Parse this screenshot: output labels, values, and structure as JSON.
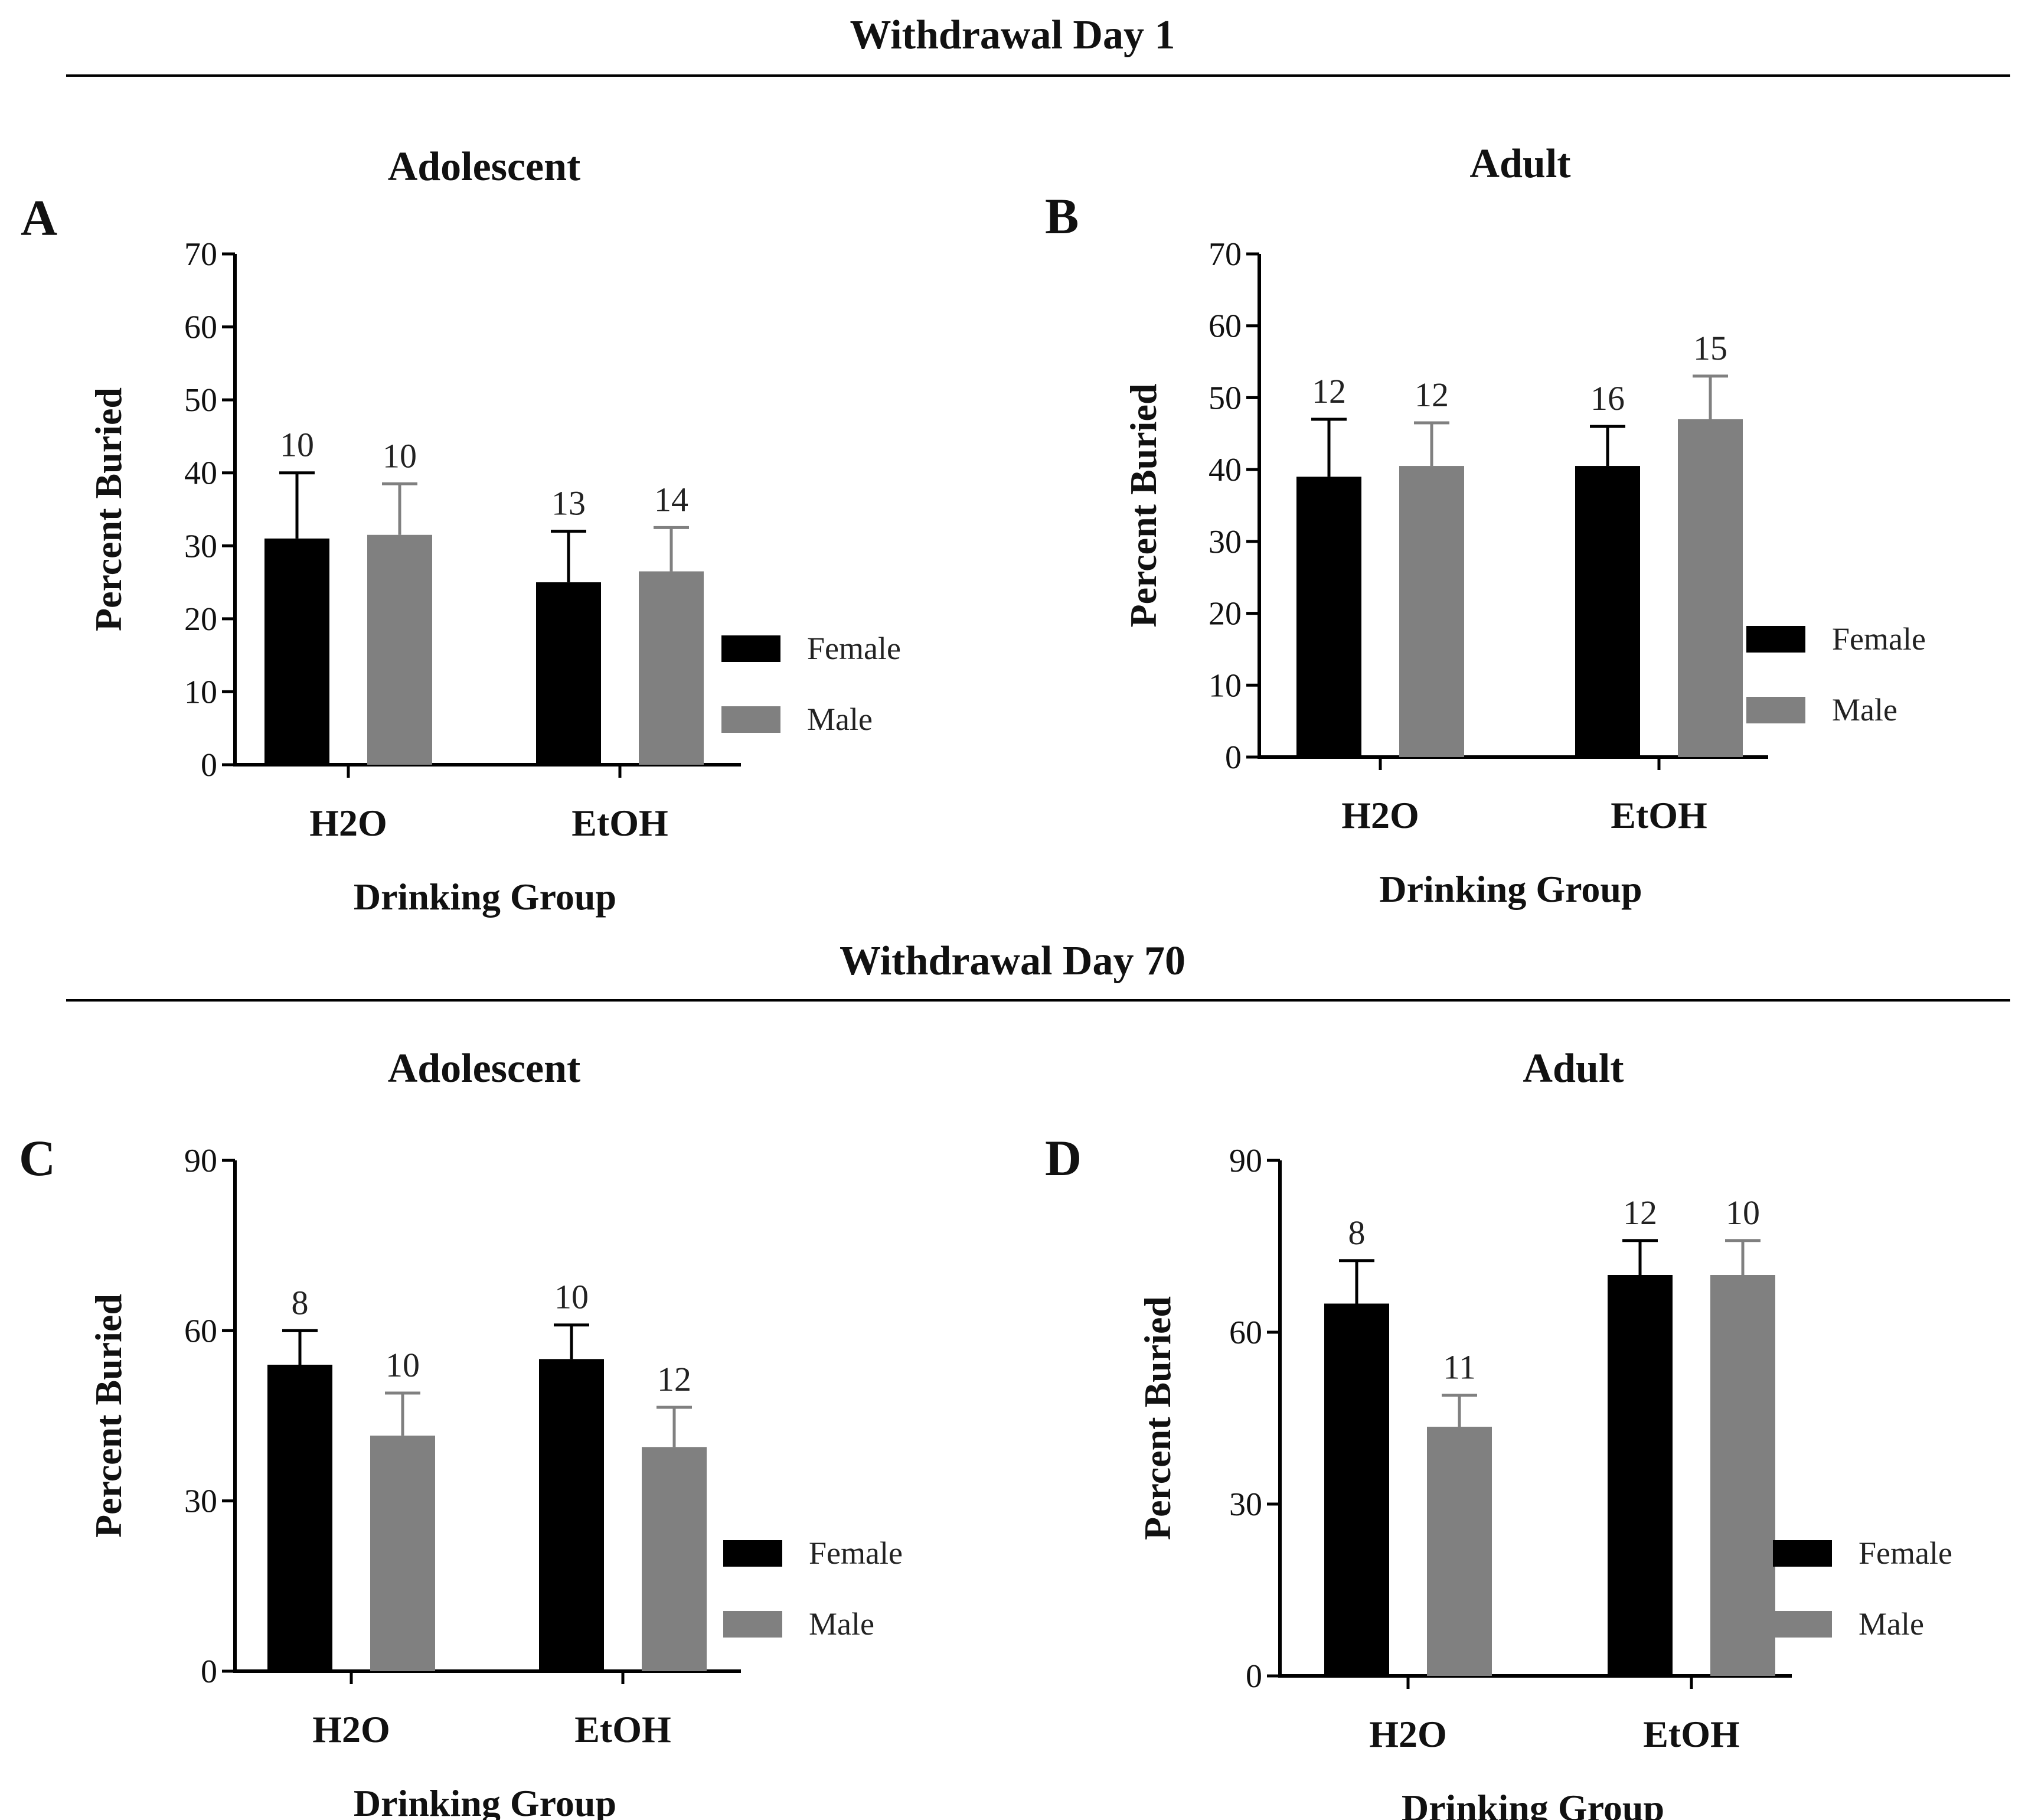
{
  "colors": {
    "female": "#000000",
    "male": "#808080",
    "axis": "#000000"
  },
  "sections": [
    {
      "title": "Withdrawal Day 1"
    },
    {
      "title": "Withdrawal Day 70"
    }
  ],
  "legend": {
    "female": "Female",
    "male": "Male"
  },
  "chart_data": [
    {
      "panel": "A",
      "type": "bar",
      "title": "Adolescent",
      "xlabel": "Drinking Group",
      "ylabel": "Percent Buried",
      "ylim": [
        0,
        70
      ],
      "yticks": [
        0,
        10,
        20,
        30,
        40,
        50,
        60,
        70
      ],
      "categories": [
        "H2O",
        "EtOH"
      ],
      "series": [
        {
          "name": "Female",
          "values": [
            31,
            25
          ],
          "errors": [
            9,
            7
          ],
          "n": [
            "10",
            "13"
          ]
        },
        {
          "name": "Male",
          "values": [
            31.5,
            26.5
          ],
          "errors": [
            7,
            6
          ],
          "n": [
            "10",
            "14"
          ]
        }
      ]
    },
    {
      "panel": "B",
      "type": "bar",
      "title": "Adult",
      "xlabel": "Drinking Group",
      "ylabel": "Percent Buried",
      "ylim": [
        0,
        70
      ],
      "yticks": [
        0,
        10,
        20,
        30,
        40,
        50,
        60,
        70
      ],
      "categories": [
        "H2O",
        "EtOH"
      ],
      "series": [
        {
          "name": "Female",
          "values": [
            39,
            40.5
          ],
          "errors": [
            8,
            5.5
          ],
          "n": [
            "12",
            "16"
          ]
        },
        {
          "name": "Male",
          "values": [
            40.5,
            47
          ],
          "errors": [
            6,
            6
          ],
          "n": [
            "12",
            "15"
          ]
        }
      ]
    },
    {
      "panel": "C",
      "type": "bar",
      "title": "Adolescent",
      "xlabel": "Drinking Group",
      "ylabel": "Percent Buried",
      "ylim": [
        0,
        90
      ],
      "yticks": [
        0,
        30,
        60,
        90
      ],
      "categories": [
        "H2O",
        "EtOH"
      ],
      "series": [
        {
          "name": "Female",
          "values": [
            54,
            55
          ],
          "errors": [
            6,
            6
          ],
          "n": [
            "8",
            "10"
          ]
        },
        {
          "name": "Male",
          "values": [
            41.5,
            39.5
          ],
          "errors": [
            7.5,
            7
          ],
          "n": [
            "10",
            "12"
          ]
        }
      ]
    },
    {
      "panel": "D",
      "type": "bar",
      "title": "Adult",
      "xlabel": "Drinking Group",
      "ylabel": "Percent Buried",
      "ylim": [
        0,
        90
      ],
      "yticks": [
        0,
        30,
        60,
        90
      ],
      "categories": [
        "H2O",
        "EtOH"
      ],
      "series": [
        {
          "name": "Female",
          "values": [
            65,
            70
          ],
          "errors": [
            7.5,
            6
          ],
          "n": [
            "8",
            "12"
          ]
        },
        {
          "name": "Male",
          "values": [
            43.5,
            70
          ],
          "errors": [
            5.5,
            6
          ],
          "n": [
            "11",
            "10"
          ]
        }
      ]
    }
  ]
}
